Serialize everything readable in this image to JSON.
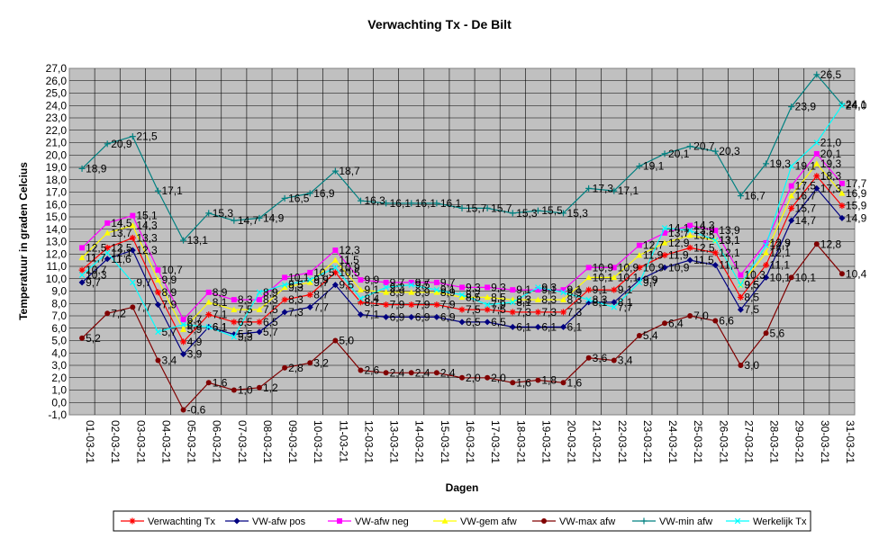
{
  "chart_data": {
    "type": "line",
    "title": "Verwachting Tx - De Bilt",
    "xlabel": "Dagen",
    "ylabel": "Temperatuur in graden Celcius",
    "ylim": [
      -1,
      27
    ],
    "yticks": [
      "-1,0",
      "0,0",
      "1,0",
      "2,0",
      "3,0",
      "4,0",
      "5,0",
      "6,0",
      "7,0",
      "8,0",
      "9,0",
      "10,0",
      "11,0",
      "12,0",
      "13,0",
      "14,0",
      "15,0",
      "16,0",
      "17,0",
      "18,0",
      "19,0",
      "20,0",
      "21,0",
      "22,0",
      "23,0",
      "24,0",
      "25,0",
      "26,0",
      "27,0"
    ],
    "negative_tick_color": "#0000cc",
    "plot_background": "#c0c0c0",
    "grid": true,
    "legend_position": "bottom",
    "categories": [
      "01-03-21",
      "02-03-21",
      "03-03-21",
      "04-03-21",
      "05-03-21",
      "06-03-21",
      "07-03-21",
      "08-03-21",
      "09-03-21",
      "10-03-21",
      "11-03-21",
      "12-03-21",
      "13-03-21",
      "14-03-21",
      "15-03-21",
      "16-03-21",
      "17-03-21",
      "18-03-21",
      "19-03-21",
      "20-03-21",
      "21-03-21",
      "22-03-21",
      "23-03-21",
      "24-03-21",
      "25-03-21",
      "26-03-21",
      "27-03-21",
      "28-03-21",
      "29-03-21",
      "30-03-21",
      "31-03-21"
    ],
    "series": [
      {
        "name": "Verwachting Tx",
        "color": "#ff0000",
        "marker": "star",
        "values": [
          10.7,
          12.5,
          13.3,
          8.9,
          4.9,
          7.1,
          6.5,
          6.5,
          8.3,
          8.7,
          10.5,
          8.1,
          7.9,
          7.9,
          7.9,
          7.5,
          7.5,
          7.3,
          7.3,
          7.3,
          9.1,
          9.1,
          10.9,
          11.9,
          12.5,
          12.1,
          8.5,
          11.1,
          15.7,
          18.3,
          15.9
        ]
      },
      {
        "name": "VW-afw pos",
        "color": "#000080",
        "marker": "diamond",
        "values": [
          9.7,
          11.6,
          12.3,
          7.9,
          3.9,
          6.1,
          5.5,
          5.7,
          7.3,
          7.7,
          9.5,
          7.1,
          6.9,
          6.9,
          6.9,
          6.5,
          6.5,
          6.1,
          6.1,
          6.1,
          8.1,
          8.1,
          9.9,
          10.9,
          11.5,
          11.1,
          7.5,
          10.1,
          14.7,
          17.3,
          14.9
        ]
      },
      {
        "name": "VW-afw neg",
        "color": "#ff00ff",
        "marker": "square",
        "values": [
          12.5,
          14.5,
          15.1,
          10.7,
          6.7,
          8.9,
          8.3,
          8.3,
          10.1,
          10.5,
          12.3,
          9.9,
          9.7,
          9.7,
          9.7,
          9.3,
          9.3,
          9.1,
          9.1,
          9.1,
          10.9,
          10.9,
          12.7,
          13.7,
          14.3,
          13.9,
          10.3,
          12.9,
          17.5,
          20.1,
          17.7
        ]
      },
      {
        "name": "VW-gem afw",
        "color": "#ffff00",
        "marker": "triangle",
        "values": [
          11.7,
          13.7,
          14.3,
          9.9,
          5.9,
          8.1,
          7.5,
          7.5,
          9.3,
          9.7,
          11.5,
          9.1,
          8.9,
          8.9,
          8.9,
          8.5,
          8.5,
          8.3,
          8.3,
          8.3,
          10.1,
          10.1,
          11.9,
          12.9,
          13.5,
          13.1,
          9.5,
          12.1,
          16.7,
          19.3,
          16.9
        ]
      },
      {
        "name": "VW-max afw",
        "color": "#800000",
        "marker": "circle",
        "values": [
          5.2,
          7.2,
          7.7,
          3.4,
          -0.6,
          1.6,
          1.0,
          1.2,
          2.8,
          3.2,
          5.0,
          2.6,
          2.4,
          2.4,
          2.4,
          2.0,
          2.0,
          1.6,
          1.8,
          1.6,
          3.6,
          3.4,
          5.4,
          6.4,
          7.0,
          6.6,
          3.0,
          5.6,
          10.1,
          12.8,
          10.4
        ]
      },
      {
        "name": "VW-min afw",
        "color": "#008080",
        "marker": "plus",
        "values": [
          18.9,
          20.9,
          21.5,
          17.1,
          13.1,
          15.3,
          14.7,
          14.9,
          16.5,
          16.9,
          18.7,
          16.3,
          16.1,
          16.1,
          16.1,
          15.7,
          15.7,
          15.3,
          15.5,
          15.3,
          17.3,
          17.1,
          19.1,
          20.1,
          20.7,
          20.3,
          16.7,
          19.3,
          23.9,
          26.5,
          24.1
        ]
      },
      {
        "name": "Werkelijk Tx",
        "color": "#00ffff",
        "marker": "x",
        "values": [
          10.3,
          12.1,
          9.7,
          5.7,
          6.3,
          6.1,
          5.3,
          8.9,
          9.5,
          9.9,
          10.9,
          8.4,
          9.3,
          9.5,
          9.1,
          8.7,
          7.9,
          8.1,
          9.3,
          8.9,
          8.3,
          7.7,
          9.7,
          14.1,
          13.9,
          13.1,
          9.5,
          12.7,
          19.1,
          21.0,
          24.0
        ]
      }
    ]
  }
}
